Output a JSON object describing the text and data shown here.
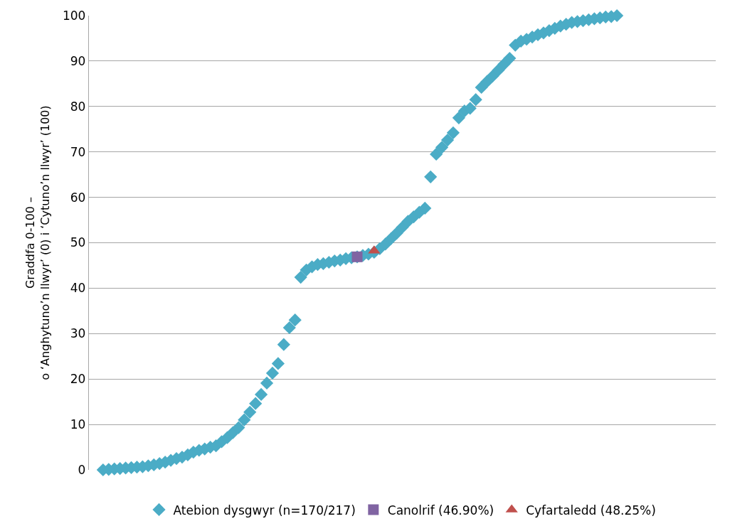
{
  "chart_data": {
    "type": "scatter",
    "ylabel": "Graddfa 0-100 –\no ‘Anghytuno’n llwyr’ (0) i ‘Cytuno’n llwyr’ (100)",
    "categories": [
      null,
      null,
      null,
      null,
      null,
      null,
      null,
      null,
      null,
      null,
      null,
      null,
      null,
      null,
      null,
      null,
      null,
      null,
      null,
      null,
      null,
      null,
      null,
      null,
      null,
      null,
      null,
      null,
      null,
      null,
      null,
      null,
      null,
      null,
      null,
      null,
      null,
      null,
      null,
      null,
      null,
      null,
      null,
      null,
      null,
      null,
      null,
      null,
      null,
      null,
      null,
      null,
      null,
      null,
      null,
      null,
      null,
      null,
      null,
      null,
      null,
      null,
      null,
      null,
      null,
      null,
      null,
      null,
      null,
      null,
      null,
      null,
      null,
      null,
      null,
      null,
      null,
      null,
      null,
      null,
      null,
      null,
      null,
      null,
      null,
      null,
      null,
      null,
      null,
      null,
      null,
      null,
      null,
      null,
      null,
      null,
      null,
      null,
      null,
      null,
      null,
      null,
      null,
      null,
      null,
      null,
      null,
      null,
      null,
      null,
      null
    ],
    "series": [
      {
        "name": "Atebion dysgwyr (n=170/217)",
        "color": "#4bacc6",
        "marker": "diamond",
        "values": [
          null,
          null,
          0,
          0.1,
          0.2,
          0.3,
          0.4,
          0.5,
          0.6,
          0.7,
          0.9,
          1.1,
          1.4,
          1.7,
          2.1,
          2.5,
          2.8,
          3.3,
          3.9,
          4.3,
          4.6,
          5.0,
          5.3,
          6.2,
          7.1,
          8.2,
          9.3,
          11.0,
          12.7,
          14.6,
          16.6,
          19.1,
          21.3,
          23.4,
          27.6,
          31.3,
          33.0,
          42.4,
          44.0,
          44.7,
          45.2,
          45.4,
          45.7,
          46.0,
          46.2,
          46.5,
          46.7,
          46.9,
          47.2,
          47.5,
          47.9,
          48.7,
          49.7,
          50.9,
          52.1,
          53.4,
          54.7,
          55.7,
          56.7,
          57.6,
          64.5,
          69.5,
          71.0,
          72.6,
          74.2,
          77.5,
          79.0,
          79.6,
          81.5,
          84.2,
          85.5,
          86.7,
          88.0,
          89.3,
          90.6,
          93.5,
          94.4,
          94.8,
          95.3,
          95.8,
          96.2,
          96.7,
          97.2,
          97.7,
          98.1,
          98.5,
          98.7,
          98.9,
          99.1,
          99.3,
          99.5,
          99.7,
          99.8,
          100,
          null,
          null,
          null,
          null,
          null,
          null,
          null,
          null,
          null,
          null,
          null,
          null,
          null,
          null,
          null,
          null,
          null
        ]
      },
      {
        "name": "Canolrif (46.90%)",
        "color": "#8064a2",
        "marker": "square",
        "values": [
          null,
          null,
          null,
          null,
          null,
          null,
          null,
          null,
          null,
          null,
          null,
          null,
          null,
          null,
          null,
          null,
          null,
          null,
          null,
          null,
          null,
          null,
          null,
          null,
          null,
          null,
          null,
          null,
          null,
          null,
          null,
          null,
          null,
          null,
          null,
          null,
          null,
          null,
          null,
          null,
          null,
          null,
          null,
          null,
          null,
          null,
          null,
          46.9,
          null,
          null,
          null,
          null,
          null,
          null,
          null,
          null,
          null,
          null,
          null,
          null,
          null,
          null,
          null,
          null,
          null,
          null,
          null,
          null,
          null,
          null,
          null,
          null,
          null,
          null,
          null,
          null,
          null,
          null,
          null,
          null,
          null,
          null,
          null,
          null,
          null,
          null,
          null,
          null,
          null,
          null,
          null,
          null,
          null,
          null,
          null,
          null,
          null,
          null,
          null,
          null,
          null,
          null,
          null,
          null,
          null,
          null,
          null,
          null,
          null,
          null,
          null
        ]
      },
      {
        "name": "Cyfartaledd (48.25%)",
        "color": "#c0504d",
        "marker": "triangle",
        "values": [
          null,
          null,
          null,
          null,
          null,
          null,
          null,
          null,
          null,
          null,
          null,
          null,
          null,
          null,
          null,
          null,
          null,
          null,
          null,
          null,
          null,
          null,
          null,
          null,
          null,
          null,
          null,
          null,
          null,
          null,
          null,
          null,
          null,
          null,
          null,
          null,
          null,
          null,
          null,
          null,
          null,
          null,
          null,
          null,
          null,
          null,
          null,
          null,
          null,
          null,
          48.25,
          null,
          null,
          null,
          null,
          null,
          null,
          null,
          null,
          null,
          null,
          null,
          null,
          null,
          null,
          null,
          null,
          null,
          null,
          null,
          null,
          null,
          null,
          null,
          null,
          null,
          null,
          null,
          null,
          null,
          null,
          null,
          null,
          null,
          null,
          null,
          null,
          null,
          null,
          null,
          null,
          null,
          null,
          null,
          null,
          null,
          null,
          null,
          null,
          null,
          null,
          null,
          null,
          null,
          null,
          null,
          null,
          null,
          null,
          null,
          null
        ]
      }
    ],
    "ylim": [
      0,
      100
    ],
    "yticks": [
      0,
      10,
      20,
      30,
      40,
      50,
      60,
      70,
      80,
      90,
      100
    ],
    "grid": "y",
    "legend": "bottom"
  }
}
